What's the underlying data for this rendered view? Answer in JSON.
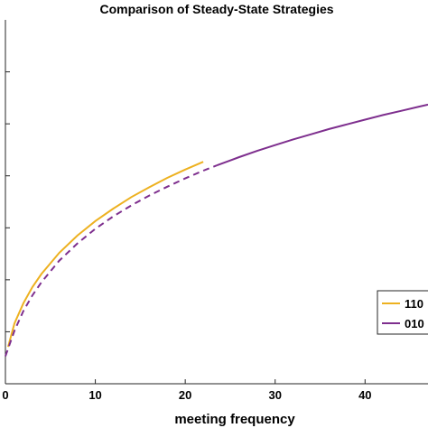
{
  "chart_data": {
    "type": "line",
    "title": "Comparison of Steady-State Strategies",
    "xlabel": "meeting frequency",
    "ylabel": "",
    "xlim": [
      0,
      47
    ],
    "ylim": [
      0,
      7
    ],
    "xticks": [
      0,
      10,
      20,
      30,
      40
    ],
    "xtick_labels": [
      "0",
      "10",
      "20",
      "30",
      "40"
    ],
    "yticks": [
      1,
      2,
      3,
      4,
      5,
      6
    ],
    "grid": false,
    "legend_position": "right",
    "series": [
      {
        "name": "110",
        "color": "#EDB120",
        "style": "solid",
        "x": [
          0.3,
          1,
          2,
          3,
          4,
          6,
          8,
          10,
          12,
          14,
          16,
          18,
          20,
          22
        ],
        "y": [
          0.71,
          1.16,
          1.55,
          1.86,
          2.11,
          2.52,
          2.85,
          3.13,
          3.37,
          3.59,
          3.78,
          3.96,
          4.12,
          4.27
        ]
      },
      {
        "name": "010",
        "color": "#7E2F8E",
        "style": "dashed-then-solid",
        "solid_from_x": 23.5,
        "x": [
          0,
          1,
          2,
          3,
          4,
          6,
          8,
          10,
          12,
          14,
          16,
          18,
          20,
          22,
          23.5,
          26,
          28,
          30,
          32,
          34,
          36,
          38,
          40,
          42,
          44,
          46,
          47
        ],
        "y": [
          0.53,
          1.02,
          1.4,
          1.7,
          1.95,
          2.37,
          2.7,
          2.98,
          3.22,
          3.43,
          3.62,
          3.79,
          3.95,
          4.1,
          4.2,
          4.36,
          4.48,
          4.59,
          4.7,
          4.8,
          4.9,
          4.99,
          5.08,
          5.17,
          5.25,
          5.33,
          5.37
        ]
      }
    ]
  }
}
